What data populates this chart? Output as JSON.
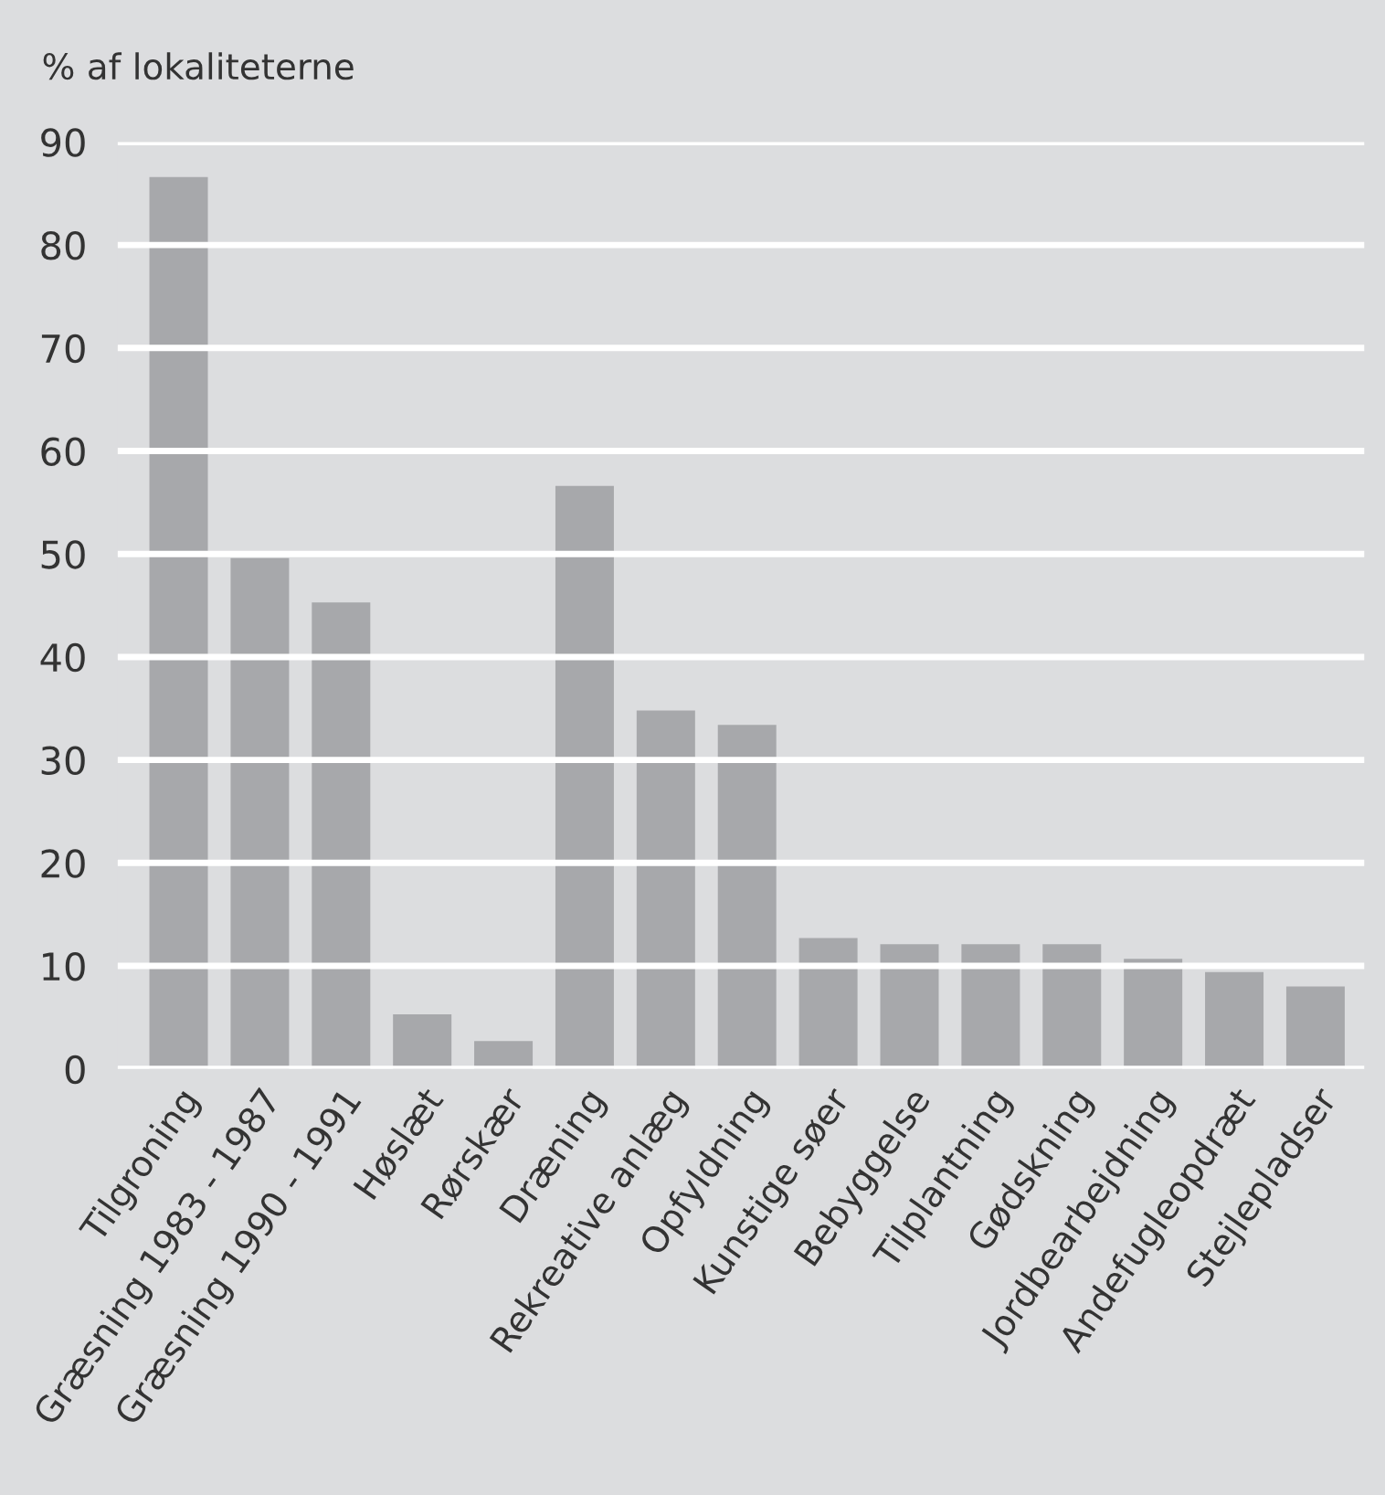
{
  "chart_data": {
    "type": "bar",
    "ylabel": "% af lokaliteterne",
    "categories": [
      "Tilgroning",
      "Græsning 1983 - 1987",
      "Græsning 1990 - 1991",
      "Høslæt",
      "Rørskær",
      "Dræning",
      "Rekreative anlæg",
      "Opfyldning",
      "Kunstige søer",
      "Bebyggelse",
      "Tilplantning",
      "Gødskning",
      "Jordbearbejdning",
      "Andefugleopdræt",
      "Stejlepladser"
    ],
    "values": [
      86.6,
      49.6,
      45.3,
      5.3,
      2.7,
      56.6,
      34.8,
      33.4,
      12.7,
      12.1,
      12.1,
      12.1,
      10.7,
      9.4,
      8.0
    ],
    "color": "#a7a8ab",
    "ylim": [
      0,
      90
    ],
    "yticks": [
      0,
      10,
      20,
      30,
      40,
      50,
      60,
      70,
      80,
      90
    ],
    "grid": "y"
  }
}
